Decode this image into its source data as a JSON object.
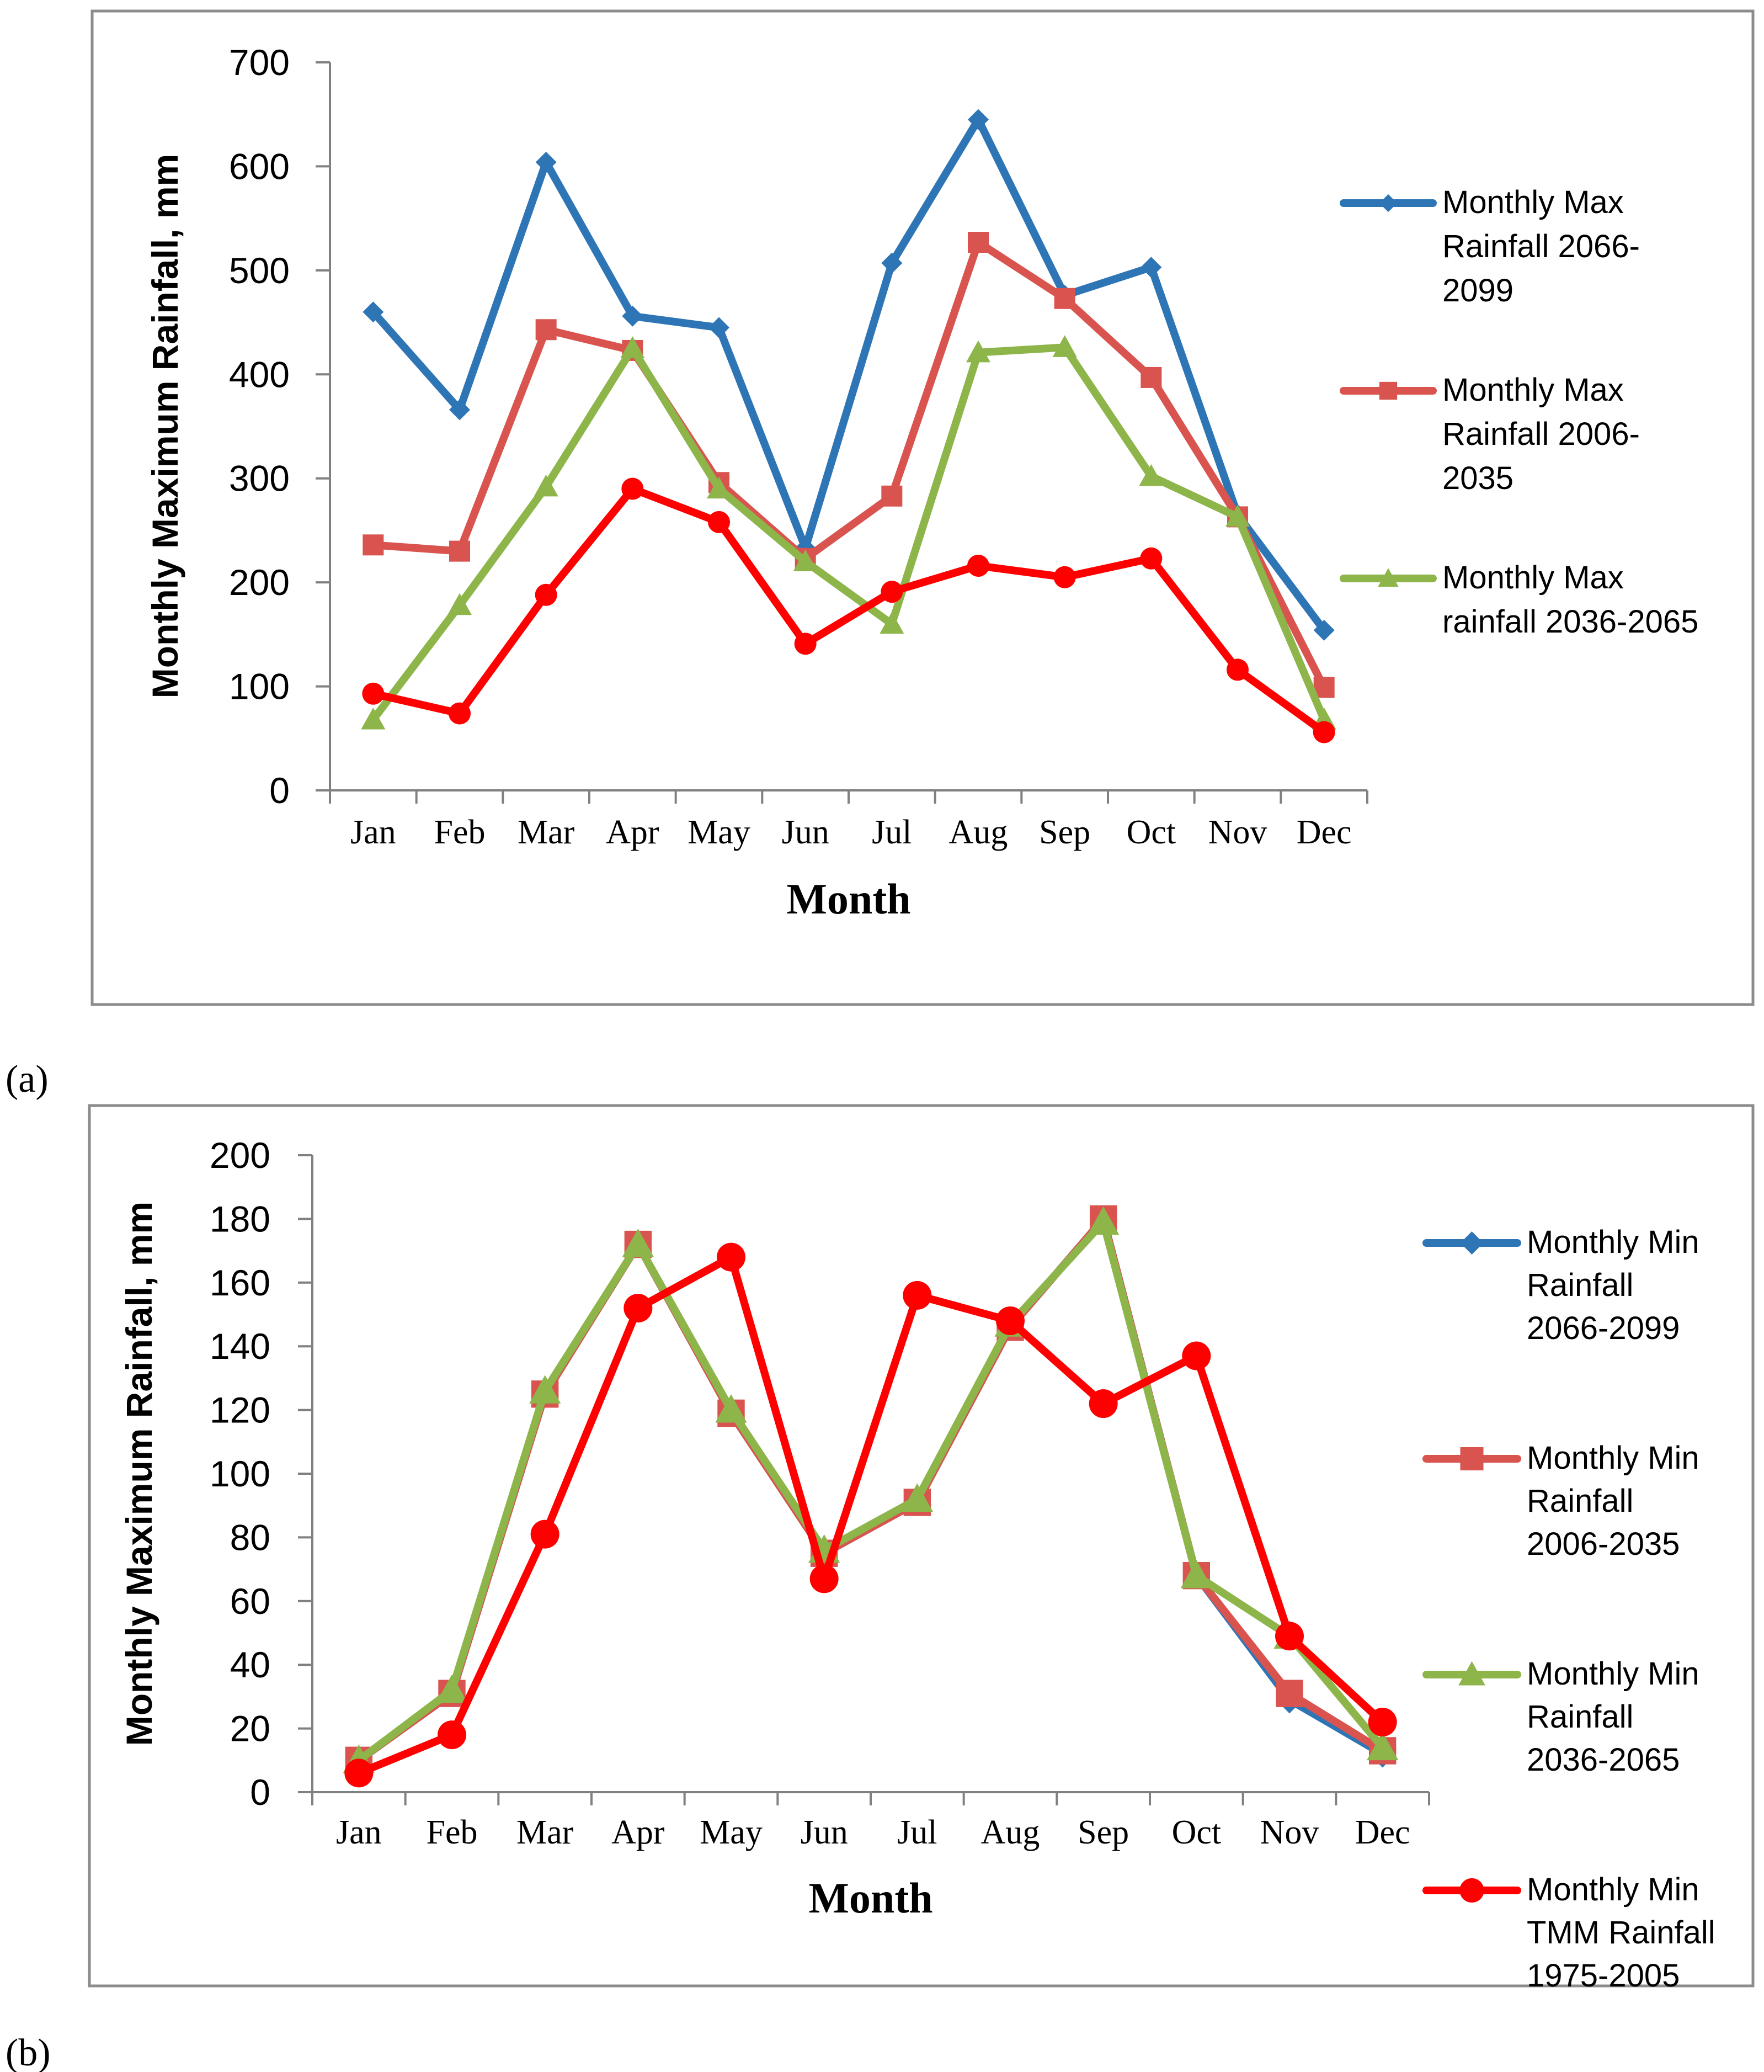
{
  "chart_data": [
    {
      "type": "line",
      "panel_label": "(a)",
      "title": "",
      "xlabel": "Month",
      "ylabel": "Monthly Maximum Rainfall, mm",
      "ylim": [
        0,
        700
      ],
      "yticks": [
        "0",
        "100",
        "200",
        "300",
        "400",
        "500",
        "600",
        "700"
      ],
      "categories": [
        "Jan",
        "Feb",
        "Mar",
        "Apr",
        "May",
        "Jun",
        "Jul",
        "Aug",
        "Sep",
        "Oct",
        "Nov",
        "Dec"
      ],
      "legend_position": "right",
      "grid": false,
      "series": [
        {
          "name": "Monthly Max Rainfall 2066-2099",
          "legend_lines": [
            "Monthly Max",
            "Rainfall 2066-",
            "2099"
          ],
          "color": "#2E75B6",
          "marker": "diamond",
          "values": [
            460,
            366,
            604,
            456,
            445,
            233,
            507,
            645,
            476,
            503,
            265,
            154
          ]
        },
        {
          "name": "Monthly Max Rainfall 2006-2035",
          "legend_lines": [
            "Monthly Max",
            "Rainfall 2006-",
            "2035"
          ],
          "color": "#D9534F",
          "marker": "square",
          "values": [
            236,
            230,
            443,
            423,
            296,
            223,
            283,
            527,
            473,
            397,
            263,
            99
          ]
        },
        {
          "name": "Monthly Max rainfall 2036-2065",
          "legend_lines": [
            "Monthly Max",
            "rainfall 2036-2065"
          ],
          "color": "#8DB54A",
          "marker": "triangle",
          "values": [
            68,
            178,
            292,
            425,
            290,
            220,
            160,
            421,
            426,
            302,
            263,
            68
          ]
        },
        {
          "name": "",
          "legend_lines": [],
          "color": "#FF0000",
          "marker": "circle",
          "values": [
            93,
            74,
            188,
            290,
            258,
            141,
            191,
            216,
            205,
            223,
            116,
            56
          ]
        }
      ]
    },
    {
      "type": "line",
      "panel_label": "(b)",
      "title": "",
      "xlabel": "Month",
      "ylabel": "Monthly Maximum Rainfall, mm",
      "ylim": [
        0,
        200
      ],
      "yticks": [
        "0",
        "20",
        "40",
        "60",
        "80",
        "100",
        "120",
        "140",
        "160",
        "180",
        "200"
      ],
      "categories": [
        "Jan",
        "Feb",
        "Mar",
        "Apr",
        "May",
        "Jun",
        "Jul",
        "Aug",
        "Sep",
        "Oct",
        "Nov",
        "Dec"
      ],
      "legend_position": "right",
      "grid": false,
      "series": [
        {
          "name": "Monthly Min Rainfall 2066-2099",
          "legend_lines": [
            "Monthly Min",
            "Rainfall",
            "2066-2099"
          ],
          "color": "#2E75B6",
          "marker": "diamond",
          "values": [
            10,
            31,
            125,
            172,
            119,
            75,
            91,
            146,
            180,
            68,
            29,
            12
          ]
        },
        {
          "name": "Monthly Min Rainfall 2006-2035",
          "legend_lines": [
            "Monthly Min",
            "Rainfall",
            "2006-2035"
          ],
          "color": "#D9534F",
          "marker": "square",
          "values": [
            10,
            31,
            125,
            172,
            119,
            75,
            91,
            146,
            180,
            68,
            31,
            13
          ]
        },
        {
          "name": "Monthly Min Rainfall 2036-2065",
          "legend_lines": [
            "Monthly Min",
            "Rainfall",
            "2036-2065"
          ],
          "color": "#8DB54A",
          "marker": "triangle",
          "values": [
            10,
            32,
            126,
            172,
            120,
            76,
            92,
            147,
            179,
            68,
            49,
            14
          ]
        },
        {
          "name": "Monthly Min TMM Rainfall 1975-2005",
          "legend_lines": [
            "Monthly Min",
            "TMM Rainfall",
            "1975-2005"
          ],
          "color": "#FF0000",
          "marker": "circle",
          "values": [
            6,
            18,
            81,
            152,
            168,
            67,
            156,
            148,
            122,
            137,
            49,
            22
          ]
        }
      ]
    }
  ]
}
